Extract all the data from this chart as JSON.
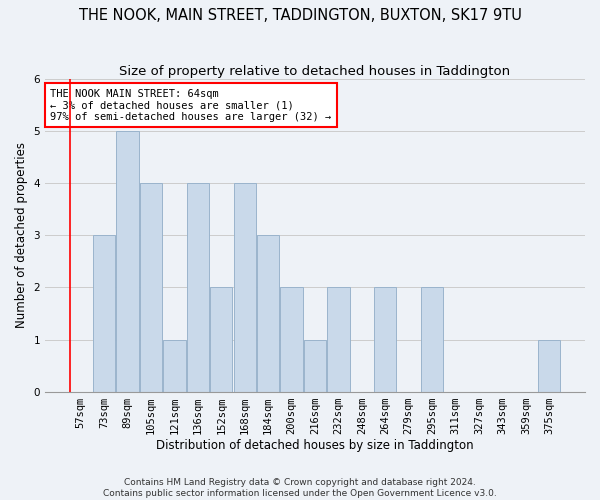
{
  "title": "THE NOOK, MAIN STREET, TADDINGTON, BUXTON, SK17 9TU",
  "subtitle": "Size of property relative to detached houses in Taddington",
  "xlabel": "Distribution of detached houses by size in Taddington",
  "ylabel": "Number of detached properties",
  "categories": [
    "57sqm",
    "73sqm",
    "89sqm",
    "105sqm",
    "121sqm",
    "136sqm",
    "152sqm",
    "168sqm",
    "184sqm",
    "200sqm",
    "216sqm",
    "232sqm",
    "248sqm",
    "264sqm",
    "279sqm",
    "295sqm",
    "311sqm",
    "327sqm",
    "343sqm",
    "359sqm",
    "375sqm"
  ],
  "values": [
    0,
    3,
    5,
    4,
    1,
    4,
    2,
    4,
    3,
    2,
    1,
    2,
    0,
    2,
    0,
    2,
    0,
    0,
    0,
    0,
    1
  ],
  "bar_color": "#c9d9ea",
  "bar_edgecolor": "#9ab4cc",
  "annotation_line1": "THE NOOK MAIN STREET: 64sqm",
  "annotation_line2": "← 3% of detached houses are smaller (1)",
  "annotation_line3": "97% of semi-detached houses are larger (32) →",
  "annotation_box_color": "white",
  "annotation_box_edgecolor": "red",
  "ylim": [
    0,
    6
  ],
  "yticks": [
    0,
    1,
    2,
    3,
    4,
    5,
    6
  ],
  "grid_color": "#cccccc",
  "background_color": "#eef2f7",
  "footnote": "Contains HM Land Registry data © Crown copyright and database right 2024.\nContains public sector information licensed under the Open Government Licence v3.0.",
  "title_fontsize": 10.5,
  "subtitle_fontsize": 9.5,
  "xlabel_fontsize": 8.5,
  "ylabel_fontsize": 8.5,
  "tick_fontsize": 7.5,
  "annotation_fontsize": 7.5,
  "footnote_fontsize": 6.5
}
